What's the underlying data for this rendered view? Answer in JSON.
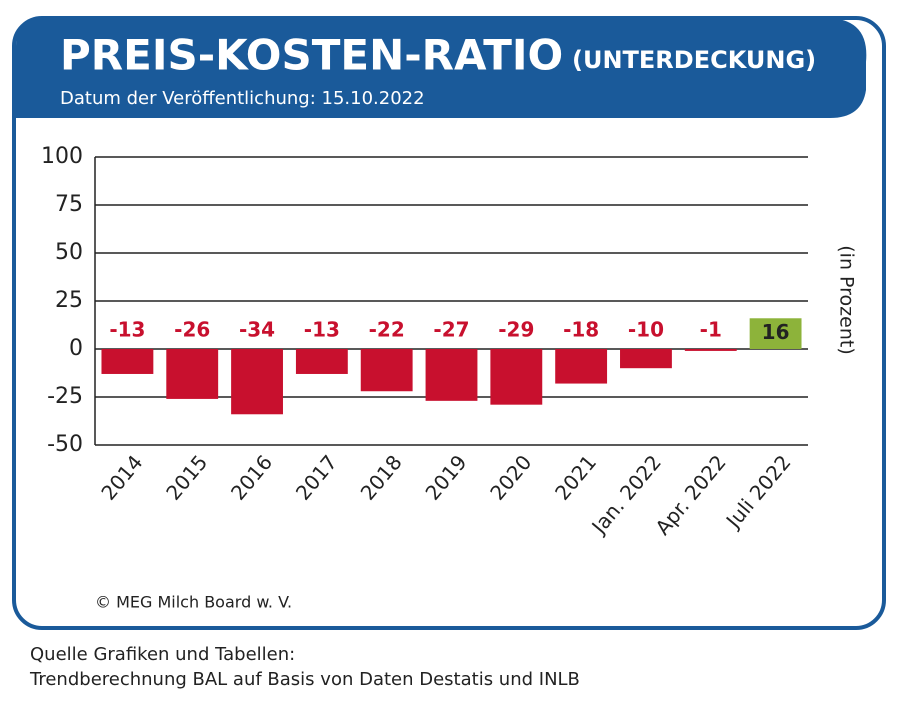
{
  "chart_data": {
    "type": "bar",
    "title": "PREIS-KOSTEN-RATIO",
    "title_note": "(UNTERDECKUNG)",
    "subtitle": "Datum der Veröffentlichung: 15.10.2022",
    "y_label": "(in Prozent)",
    "categories": [
      "2014",
      "2015",
      "2016",
      "2017",
      "2018",
      "2019",
      "2020",
      "2021",
      "Jan. 2022",
      "Apr. 2022",
      "Juli 2022"
    ],
    "values": [
      -13,
      -26,
      -34,
      -13,
      -22,
      -27,
      -29,
      -18,
      -10,
      -1,
      16
    ],
    "negative_color": "#c8102e",
    "positive_color": "#8db33a",
    "ylim": [
      -50,
      100
    ],
    "yticks": [
      100,
      75,
      50,
      25,
      0,
      -25,
      -50
    ],
    "grid": true,
    "copyright": "© MEG Milch Board w. V.",
    "source": [
      "Quelle Grafiken und Tabellen:",
      "Trendberechnung BAL auf Basis von Daten Destatis und INLB"
    ]
  }
}
